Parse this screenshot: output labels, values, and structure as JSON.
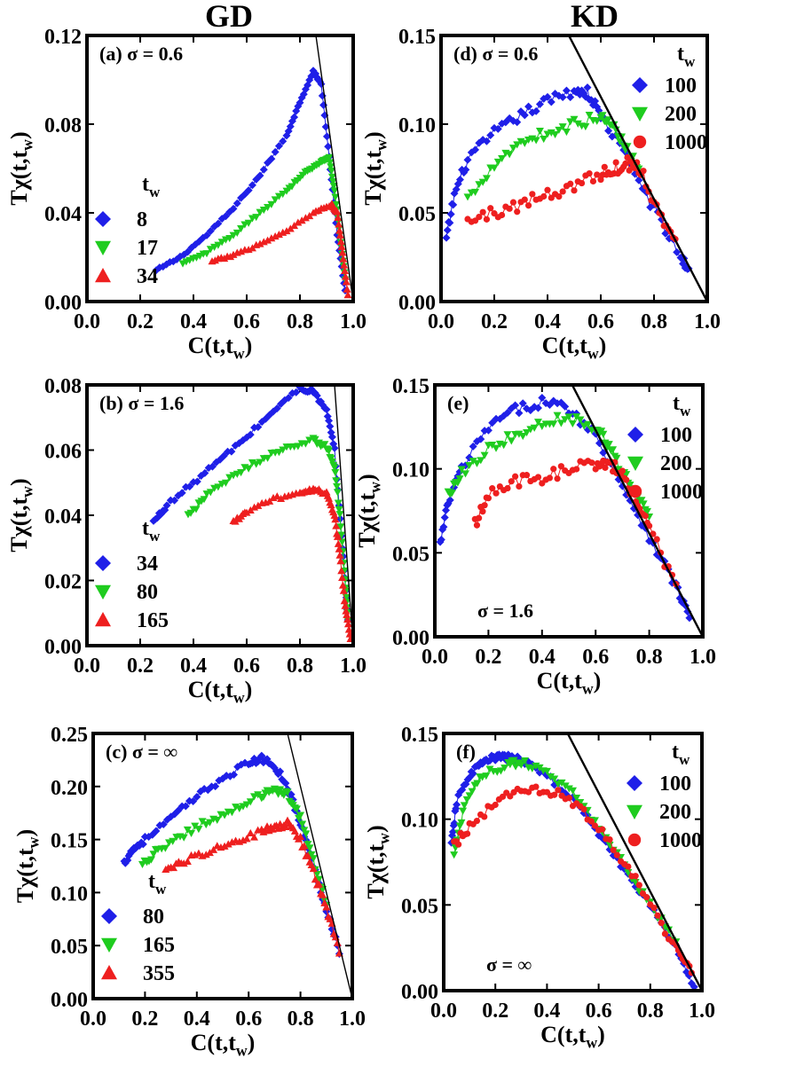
{
  "figure": {
    "column_titles": [
      "GD",
      "KD"
    ]
  },
  "chart_data": [
    {
      "id": "a",
      "type": "scatter",
      "column": "GD",
      "title": "(a) σ = 0.6",
      "title_pos": "top-left",
      "xlabel": "C(t,t",
      "xlabel_sub": "w",
      "xlabel_end": ")",
      "ylabel": "Tχ(t,t",
      "ylabel_sub": "w",
      "ylabel_end": ")",
      "xlim": [
        0,
        1.0
      ],
      "ylim": [
        0,
        0.12
      ],
      "xticks": [
        0.0,
        0.2,
        0.4,
        0.6,
        0.8,
        1.0
      ],
      "xtick_labels": [
        "0.0",
        "0.2",
        "0.4",
        "0.6",
        "0.8",
        "1.0"
      ],
      "yticks": [
        0.0,
        0.04,
        0.08,
        0.12
      ],
      "ytick_labels": [
        "0.00",
        "0.04",
        "0.08",
        "0.12"
      ],
      "legend_title": "t",
      "legend_title_sub": "w",
      "legend_pos": "left",
      "legend_labels_x": "left",
      "reference_line": {
        "x": [
          0.86,
          1.0
        ],
        "y": [
          0.12,
          0.0
        ],
        "width": 1.4
      },
      "series": [
        {
          "name": "8",
          "color": "#1f1fe8",
          "marker": "diamond",
          "noise": 0.0005,
          "x": [
            0.26,
            0.35,
            0.45,
            0.55,
            0.65,
            0.75,
            0.8,
            0.85,
            0.88,
            0.91,
            0.94,
            0.97
          ],
          "y": [
            0.014,
            0.02,
            0.03,
            0.042,
            0.057,
            0.075,
            0.09,
            0.104,
            0.098,
            0.065,
            0.03,
            0.005
          ]
        },
        {
          "name": "17",
          "color": "#1fcc1f",
          "marker": "triangle-down",
          "noise": 0.0005,
          "x": [
            0.36,
            0.45,
            0.55,
            0.65,
            0.75,
            0.82,
            0.88,
            0.91,
            0.93,
            0.95,
            0.97
          ],
          "y": [
            0.017,
            0.022,
            0.03,
            0.04,
            0.05,
            0.058,
            0.063,
            0.065,
            0.05,
            0.03,
            0.01
          ]
        },
        {
          "name": "34",
          "color": "#ee1f1f",
          "marker": "triangle-up",
          "noise": 0.0005,
          "x": [
            0.47,
            0.55,
            0.65,
            0.75,
            0.85,
            0.92,
            0.94,
            0.96,
            0.98
          ],
          "y": [
            0.018,
            0.021,
            0.026,
            0.032,
            0.04,
            0.044,
            0.04,
            0.022,
            0.003
          ]
        }
      ]
    },
    {
      "id": "d",
      "type": "scatter",
      "column": "KD",
      "title": "(d) σ = 0.6",
      "title_pos": "top-left",
      "xlabel": "C(t,t",
      "xlabel_sub": "w",
      "xlabel_end": ")",
      "ylabel": "Tχ(t,t",
      "ylabel_sub": "w",
      "ylabel_end": ")",
      "xlim": [
        0,
        1.0
      ],
      "ylim": [
        0,
        0.15
      ],
      "xticks": [
        0.0,
        0.2,
        0.4,
        0.6,
        0.8,
        1.0
      ],
      "xtick_labels": [
        "0.0",
        "0.2",
        "0.4",
        "0.6",
        "0.8",
        "1.0"
      ],
      "yticks": [
        0.0,
        0.05,
        0.1,
        0.15
      ],
      "ytick_labels": [
        "0.00",
        "0.05",
        "0.10",
        "0.15"
      ],
      "legend_title": "t",
      "legend_title_sub": "w",
      "legend_pos": "right",
      "legend_labels_x": "right",
      "reference_line": {
        "x": [
          0.48,
          1.0
        ],
        "y": [
          0.15,
          0.0
        ],
        "width": 2.4
      },
      "series": [
        {
          "name": "100",
          "color": "#1f1fe8",
          "marker": "diamond",
          "noise": 0.003,
          "x": [
            0.02,
            0.05,
            0.1,
            0.2,
            0.3,
            0.4,
            0.5,
            0.55,
            0.6,
            0.7,
            0.8,
            0.9,
            0.93
          ],
          "y": [
            0.035,
            0.06,
            0.08,
            0.095,
            0.105,
            0.113,
            0.119,
            0.118,
            0.105,
            0.081,
            0.052,
            0.025,
            0.018
          ]
        },
        {
          "name": "200",
          "color": "#1fcc1f",
          "marker": "triangle-down",
          "noise": 0.003,
          "x": [
            0.1,
            0.2,
            0.3,
            0.4,
            0.5,
            0.6,
            0.65,
            0.7,
            0.75
          ],
          "y": [
            0.058,
            0.078,
            0.09,
            0.095,
            0.1,
            0.104,
            0.098,
            0.085,
            0.074
          ]
        },
        {
          "name": "1000",
          "color": "#ee1f1f",
          "marker": "circle",
          "noise": 0.004,
          "x": [
            0.1,
            0.2,
            0.3,
            0.4,
            0.5,
            0.6,
            0.65,
            0.7,
            0.75,
            0.82,
            0.88
          ],
          "y": [
            0.045,
            0.05,
            0.055,
            0.06,
            0.066,
            0.072,
            0.075,
            0.078,
            0.075,
            0.05,
            0.033
          ]
        }
      ]
    },
    {
      "id": "b",
      "type": "scatter",
      "column": "GD",
      "title": "(b) σ = 1.6",
      "title_pos": "top-left",
      "xlabel": "C(t,t",
      "xlabel_sub": "w",
      "xlabel_end": ")",
      "ylabel": "Tχ(t,t",
      "ylabel_sub": "w",
      "ylabel_end": ")",
      "xlim": [
        0,
        1.0
      ],
      "ylim": [
        0,
        0.08
      ],
      "xticks": [
        0.0,
        0.2,
        0.4,
        0.6,
        0.8,
        1.0
      ],
      "xtick_labels": [
        "0.0",
        "0.2",
        "0.4",
        "0.6",
        "0.8",
        "1.0"
      ],
      "yticks": [
        0.0,
        0.02,
        0.04,
        0.06,
        0.08
      ],
      "ytick_labels": [
        "0.00",
        "0.02",
        "0.04",
        "0.06",
        "0.08"
      ],
      "legend_title": "t",
      "legend_title_sub": "w",
      "legend_pos": "left",
      "legend_labels_x": "left",
      "reference_line": {
        "x": [
          0.93,
          1.0
        ],
        "y": [
          0.08,
          0.0
        ],
        "width": 1.4
      },
      "series": [
        {
          "name": "34",
          "color": "#1f1fe8",
          "marker": "diamond",
          "noise": 0.0007,
          "x": [
            0.25,
            0.3,
            0.4,
            0.5,
            0.6,
            0.7,
            0.8,
            0.85,
            0.9,
            0.93,
            0.96,
            0.98
          ],
          "y": [
            0.038,
            0.043,
            0.05,
            0.057,
            0.064,
            0.072,
            0.079,
            0.078,
            0.072,
            0.06,
            0.03,
            0.008
          ]
        },
        {
          "name": "80",
          "color": "#1fcc1f",
          "marker": "triangle-down",
          "noise": 0.0007,
          "x": [
            0.38,
            0.45,
            0.55,
            0.65,
            0.75,
            0.85,
            0.9,
            0.93,
            0.95,
            0.97,
            0.98
          ],
          "y": [
            0.04,
            0.046,
            0.052,
            0.057,
            0.061,
            0.063,
            0.061,
            0.055,
            0.04,
            0.02,
            0.008
          ]
        },
        {
          "name": "165",
          "color": "#ee1f1f",
          "marker": "triangle-up",
          "noise": 0.0006,
          "x": [
            0.55,
            0.6,
            0.7,
            0.8,
            0.85,
            0.9,
            0.93,
            0.95,
            0.97,
            0.99
          ],
          "y": [
            0.038,
            0.041,
            0.045,
            0.047,
            0.048,
            0.047,
            0.04,
            0.028,
            0.012,
            0.002
          ]
        }
      ]
    },
    {
      "id": "e",
      "type": "scatter",
      "column": "KD",
      "title": "(e)",
      "title_pos": "top-left",
      "annotation": "σ = 1.6",
      "xlabel": "C(t,t",
      "xlabel_sub": "w",
      "xlabel_end": ")",
      "ylabel": "Tχ(t,t",
      "ylabel_sub": "w",
      "ylabel_end": ")",
      "xlim": [
        0,
        1.0
      ],
      "ylim": [
        0,
        0.15
      ],
      "xticks": [
        0.0,
        0.2,
        0.4,
        0.6,
        0.8,
        1.0
      ],
      "xtick_labels": [
        "0.0",
        "0.2",
        "0.4",
        "0.6",
        "0.8",
        "1.0"
      ],
      "yticks": [
        0.0,
        0.05,
        0.1,
        0.15
      ],
      "ytick_labels": [
        "0.00",
        "0.05",
        "0.10",
        "0.15"
      ],
      "legend_title": "t",
      "legend_title_sub": "w",
      "legend_pos": "right",
      "legend_labels_x": "right",
      "reference_line": {
        "x": [
          0.48,
          1.0
        ],
        "y": [
          0.16,
          0.0
        ],
        "width": 2.4
      },
      "series": [
        {
          "name": "100",
          "color": "#1f1fe8",
          "marker": "diamond",
          "noise": 0.003,
          "x": [
            0.02,
            0.05,
            0.1,
            0.2,
            0.3,
            0.4,
            0.5,
            0.6,
            0.7,
            0.8,
            0.9,
            0.95
          ],
          "y": [
            0.055,
            0.08,
            0.1,
            0.125,
            0.135,
            0.14,
            0.136,
            0.12,
            0.09,
            0.06,
            0.03,
            0.012
          ]
        },
        {
          "name": "200",
          "color": "#1fcc1f",
          "marker": "triangle-down",
          "noise": 0.003,
          "x": [
            0.05,
            0.1,
            0.2,
            0.3,
            0.4,
            0.5,
            0.6,
            0.65,
            0.7,
            0.75,
            0.8
          ],
          "y": [
            0.085,
            0.098,
            0.112,
            0.12,
            0.128,
            0.131,
            0.124,
            0.114,
            0.098,
            0.085,
            0.07
          ]
        },
        {
          "name": "1000",
          "color": "#ee1f1f",
          "marker": "circle",
          "noise": 0.004,
          "x": [
            0.15,
            0.2,
            0.3,
            0.4,
            0.5,
            0.6,
            0.65,
            0.7,
            0.75,
            0.8,
            0.9
          ],
          "y": [
            0.068,
            0.085,
            0.092,
            0.095,
            0.1,
            0.103,
            0.102,
            0.098,
            0.082,
            0.065,
            0.03
          ]
        }
      ]
    },
    {
      "id": "c",
      "type": "scatter",
      "column": "GD",
      "title": "(c) σ = ∞",
      "title_pos": "top-left",
      "xlabel": "C(t,t",
      "xlabel_sub": "w",
      "xlabel_end": ")",
      "ylabel": "Tχ(t,t",
      "ylabel_sub": "w",
      "ylabel_end": ")",
      "xlim": [
        0,
        1.0
      ],
      "ylim": [
        0,
        0.25
      ],
      "xticks": [
        0.0,
        0.2,
        0.4,
        0.6,
        0.8,
        1.0
      ],
      "xtick_labels": [
        "0.0",
        "0.2",
        "0.4",
        "0.6",
        "0.8",
        "1.0"
      ],
      "yticks": [
        0.0,
        0.05,
        0.1,
        0.15,
        0.2,
        0.25
      ],
      "ytick_labels": [
        "0.00",
        "0.05",
        "0.10",
        "0.15",
        "0.20",
        "0.25"
      ],
      "legend_title": "t",
      "legend_title_sub": "w",
      "legend_pos": "left",
      "legend_labels_x": "left",
      "reference_line": {
        "x": [
          0.75,
          1.0
        ],
        "y": [
          0.25,
          0.0
        ],
        "width": 1.4
      },
      "series": [
        {
          "name": "80",
          "color": "#1f1fe8",
          "marker": "diamond",
          "noise": 0.003,
          "x": [
            0.12,
            0.15,
            0.2,
            0.3,
            0.4,
            0.5,
            0.6,
            0.65,
            0.7,
            0.75,
            0.8,
            0.85,
            0.9,
            0.95
          ],
          "y": [
            0.128,
            0.14,
            0.15,
            0.17,
            0.19,
            0.208,
            0.222,
            0.226,
            0.22,
            0.2,
            0.165,
            0.125,
            0.085,
            0.045
          ]
        },
        {
          "name": "165",
          "color": "#1fcc1f",
          "marker": "triangle-down",
          "noise": 0.003,
          "x": [
            0.19,
            0.25,
            0.35,
            0.45,
            0.55,
            0.65,
            0.7,
            0.75,
            0.8,
            0.85,
            0.9
          ],
          "y": [
            0.125,
            0.14,
            0.155,
            0.168,
            0.18,
            0.192,
            0.197,
            0.192,
            0.17,
            0.13,
            0.09
          ]
        },
        {
          "name": "355",
          "color": "#ee1f1f",
          "marker": "triangle-up",
          "noise": 0.003,
          "x": [
            0.28,
            0.35,
            0.45,
            0.55,
            0.65,
            0.7,
            0.75,
            0.8,
            0.85,
            0.9,
            0.95
          ],
          "y": [
            0.12,
            0.13,
            0.14,
            0.148,
            0.158,
            0.162,
            0.165,
            0.15,
            0.12,
            0.085,
            0.045
          ]
        }
      ]
    },
    {
      "id": "f",
      "type": "scatter",
      "column": "KD",
      "title": "(f)",
      "title_pos": "top-left",
      "annotation": "σ = ∞",
      "xlabel": "C(t,t",
      "xlabel_sub": "w",
      "xlabel_end": ")",
      "ylabel": "Tχ(t,t",
      "ylabel_sub": "w",
      "ylabel_end": ")",
      "xlim": [
        0,
        1.0
      ],
      "ylim": [
        0,
        0.15
      ],
      "xticks": [
        0.0,
        0.2,
        0.4,
        0.6,
        0.8,
        1.0
      ],
      "xtick_labels": [
        "0.0",
        "0.2",
        "0.4",
        "0.6",
        "0.8",
        "1.0"
      ],
      "yticks": [
        0.0,
        0.05,
        0.1,
        0.15
      ],
      "ytick_labels": [
        "0.00",
        "0.05",
        "0.10",
        "0.15"
      ],
      "legend_title": "t",
      "legend_title_sub": "w",
      "legend_pos": "right",
      "legend_labels_x": "right",
      "reference_line": {
        "x": [
          0.48,
          1.0
        ],
        "y": [
          0.15,
          0.0
        ],
        "width": 2.4
      },
      "series": [
        {
          "name": "100",
          "color": "#1f1fe8",
          "marker": "diamond",
          "noise": 0.002,
          "x": [
            0.03,
            0.05,
            0.1,
            0.15,
            0.2,
            0.25,
            0.3,
            0.4,
            0.5,
            0.6,
            0.7,
            0.8,
            0.9,
            0.97
          ],
          "y": [
            0.085,
            0.11,
            0.126,
            0.133,
            0.136,
            0.136,
            0.134,
            0.126,
            0.112,
            0.092,
            0.07,
            0.05,
            0.025,
            0.003
          ]
        },
        {
          "name": "200",
          "color": "#1fcc1f",
          "marker": "triangle-down",
          "noise": 0.002,
          "x": [
            0.04,
            0.08,
            0.15,
            0.25,
            0.3,
            0.4,
            0.5,
            0.6,
            0.7,
            0.8,
            0.9
          ],
          "y": [
            0.078,
            0.108,
            0.126,
            0.132,
            0.133,
            0.128,
            0.115,
            0.095,
            0.073,
            0.05,
            0.028
          ]
        },
        {
          "name": "1000",
          "color": "#ee1f1f",
          "marker": "circle",
          "noise": 0.003,
          "x": [
            0.04,
            0.1,
            0.2,
            0.3,
            0.4,
            0.5,
            0.6,
            0.7,
            0.8,
            0.9,
            0.96
          ],
          "y": [
            0.085,
            0.095,
            0.11,
            0.118,
            0.117,
            0.11,
            0.095,
            0.075,
            0.05,
            0.025,
            0.01
          ]
        }
      ]
    }
  ]
}
